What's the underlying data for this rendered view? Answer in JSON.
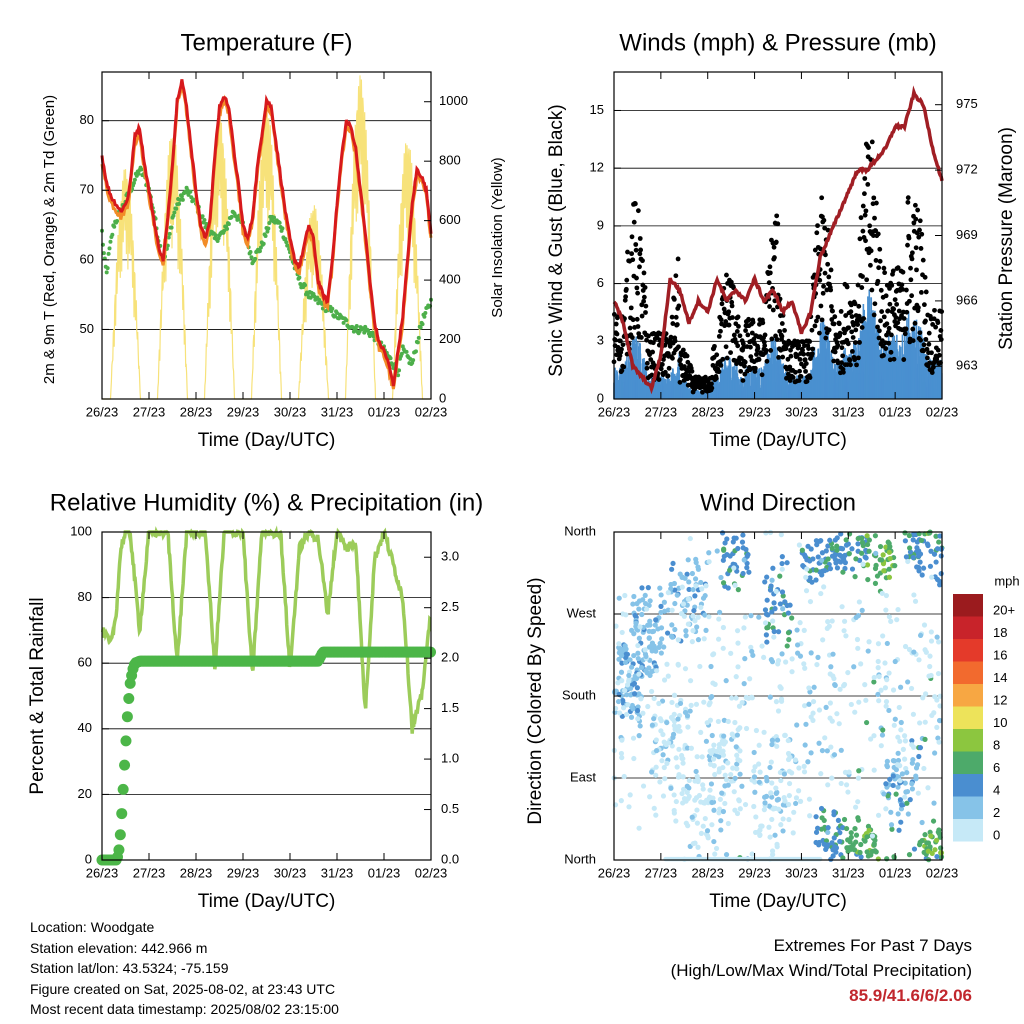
{
  "chart_data": [
    {
      "type": "line",
      "title": "Temperature (F)",
      "xlabel": "Time (Day/UTC)",
      "ylabel": "2m & 9m T (Red, Orange) & 2m Td (Green)",
      "y2label": "Solar Insolation (Yellow)",
      "x_ticks": [
        "26/23",
        "27/23",
        "28/23",
        "29/23",
        "30/23",
        "31/23",
        "01/23",
        "02/23"
      ],
      "ylim": [
        40,
        87
      ],
      "y_ticks": [
        50,
        60,
        70,
        80
      ],
      "y2lim": [
        0,
        1100
      ],
      "y2_ticks": [
        0,
        200,
        400,
        600,
        800,
        1000
      ],
      "grid": true,
      "series": [
        {
          "name": "2m T",
          "color": "#d7191c",
          "axis": "left",
          "x": [
            0,
            0.1,
            0.2,
            0.3,
            0.4,
            0.5,
            0.55,
            0.6,
            0.7,
            0.8,
            0.9,
            1.0,
            1.1,
            1.2,
            1.3,
            1.4,
            1.5,
            1.6,
            1.7,
            1.8,
            1.9,
            2.0,
            2.1,
            2.2,
            2.3,
            2.4,
            2.5,
            2.6,
            2.7,
            2.8,
            2.9,
            3.0,
            3.1,
            3.2,
            3.3,
            3.4,
            3.5,
            3.6,
            3.7,
            3.8,
            3.9,
            4.0,
            4.1,
            4.2,
            4.3,
            4.4,
            4.5,
            4.6,
            4.7,
            4.8,
            4.9,
            5.0,
            5.1,
            5.2,
            5.3,
            5.4,
            5.5,
            5.6,
            5.7,
            5.8,
            5.9,
            6.0,
            6.1,
            6.2,
            6.3,
            6.4,
            6.5,
            6.6,
            6.7,
            6.8,
            6.9,
            7.0
          ],
          "y": [
            75,
            71,
            69,
            68,
            67,
            68,
            69,
            71,
            78,
            79,
            74,
            70,
            66,
            62,
            60,
            66,
            74,
            83,
            85.9,
            82,
            76,
            70,
            65,
            63,
            66,
            75,
            82,
            83.5,
            82,
            76,
            71,
            65,
            63,
            66,
            73,
            78,
            83,
            82,
            77,
            72,
            67,
            63,
            60,
            59,
            62,
            65,
            63,
            57,
            55,
            54,
            60,
            68,
            75,
            80,
            79,
            76,
            70,
            64,
            57,
            51,
            48,
            47,
            45,
            42,
            47,
            52,
            60,
            68,
            73,
            72,
            70,
            64
          ]
        },
        {
          "name": "9m T",
          "color": "#f28c28",
          "axis": "left",
          "x": [
            0,
            0.3,
            0.6,
            0.9,
            1.2,
            1.5,
            1.8,
            2.1,
            2.4,
            2.7,
            3.0,
            3.3,
            3.6,
            3.9,
            4.2,
            4.5,
            4.8,
            5.1,
            5.4,
            5.7,
            6.0,
            6.3,
            6.6,
            6.9,
            7.0
          ],
          "y": [
            74,
            68,
            71,
            73,
            62,
            73,
            82,
            66,
            72,
            80,
            66,
            71,
            80,
            69,
            60,
            62,
            55,
            66,
            78,
            63,
            49,
            43,
            62,
            71,
            65
          ]
        },
        {
          "name": "2m Td",
          "color": "#4daf4a",
          "axis": "left",
          "x": [
            0,
            0.05,
            0.1,
            0.15,
            0.25,
            0.4,
            0.6,
            0.8,
            0.9,
            1.0,
            1.1,
            1.2,
            1.3,
            1.4,
            1.5,
            1.6,
            1.8,
            2.0,
            2.2,
            2.4,
            2.6,
            2.8,
            3.0,
            3.2,
            3.4,
            3.6,
            3.8,
            4.0,
            4.2,
            4.4,
            4.6,
            4.8,
            5.0,
            5.2,
            5.4,
            5.6,
            5.8,
            6.0,
            6.1,
            6.2,
            6.3,
            6.4,
            6.6,
            6.8,
            7.0
          ],
          "y": [
            64,
            60,
            58,
            61,
            65,
            67,
            70,
            73,
            72,
            70,
            67,
            63,
            60,
            62,
            66,
            68,
            70,
            68,
            65,
            63,
            64,
            67,
            65,
            60,
            62,
            66,
            65,
            61,
            57,
            55,
            54,
            53,
            52,
            51,
            50,
            50,
            49,
            47,
            46,
            45,
            44,
            47,
            45,
            51,
            54
          ]
        },
        {
          "name": "Solar Insolation",
          "color": "#f7e27a",
          "axis": "right",
          "peaks_x": [
            0.5,
            1.5,
            2.5,
            3.5,
            4.5,
            5.5,
            6.5
          ],
          "peaks_y": [
            780,
            910,
            960,
            1000,
            660,
            1090,
            880
          ]
        }
      ]
    },
    {
      "type": "scatter",
      "title": "Winds (mph) & Pressure (mb)",
      "xlabel": "Time (Day/UTC)",
      "ylabel": "Sonic Wind & Gust (Blue, Black)",
      "y2label": "Station Pressure (Maroon)",
      "x_ticks": [
        "26/23",
        "27/23",
        "28/23",
        "29/23",
        "30/23",
        "31/23",
        "01/23",
        "02/23"
      ],
      "ylim": [
        0,
        17
      ],
      "y_ticks": [
        0,
        3,
        6,
        9,
        12,
        15
      ],
      "y2lim": [
        961.5,
        976.5
      ],
      "y2_ticks": [
        963,
        966,
        969,
        972,
        975
      ],
      "grid": true,
      "series": [
        {
          "name": "Sonic Wind",
          "color": "#4a90d0",
          "mean_level": [
            2,
            1.5,
            0.6,
            1.4,
            2,
            1.5,
            2.5,
            3.5,
            4,
            2.5
          ]
        },
        {
          "name": "Gust",
          "color": "#000000",
          "mean_level": [
            6,
            4.5,
            1.5,
            4,
            5.5,
            4,
            6,
            8,
            9,
            6
          ]
        },
        {
          "name": "Station Pressure",
          "color": "#a01e24",
          "x": [
            0,
            0.2,
            0.4,
            0.6,
            0.8,
            1.0,
            1.2,
            1.4,
            1.6,
            1.8,
            2.0,
            2.2,
            2.4,
            2.6,
            2.8,
            3.0,
            3.2,
            3.4,
            3.6,
            3.8,
            4.0,
            4.2,
            4.4,
            4.6,
            4.8,
            5.0,
            5.2,
            5.4,
            5.6,
            5.8,
            6.0,
            6.2,
            6.4,
            6.6,
            6.8,
            7.0
          ],
          "y": [
            966,
            965,
            963,
            962.5,
            962,
            963.5,
            967,
            966.5,
            965,
            966,
            965.5,
            967,
            966,
            966.5,
            966,
            967,
            966,
            966.5,
            965.5,
            966,
            964.5,
            965.5,
            968,
            969,
            970,
            971,
            972,
            972,
            972.5,
            973,
            974,
            974,
            975.5,
            975,
            973,
            971.5
          ]
        }
      ]
    },
    {
      "type": "line",
      "title": "Relative Humidity (%) & Precipitation (in)",
      "xlabel": "Time (Day/UTC)",
      "ylabel": "Percent & Total Rainfall",
      "x_ticks": [
        "26/23",
        "27/23",
        "28/23",
        "29/23",
        "30/23",
        "31/23",
        "01/23",
        "02/23"
      ],
      "ylim": [
        0,
        100
      ],
      "y_ticks": [
        0,
        20,
        40,
        60,
        80,
        100
      ],
      "y2lim": [
        0,
        3.25
      ],
      "y2_ticks": [
        "0.0",
        "0.5",
        "1.0",
        "1.5",
        "2.0",
        "2.5",
        "3.0"
      ],
      "grid": true,
      "series": [
        {
          "name": "Relative Humidity",
          "color": "#9ccc5a",
          "axis": "left",
          "x": [
            0,
            0.1,
            0.2,
            0.3,
            0.4,
            0.5,
            0.6,
            0.8,
            1.0,
            1.2,
            1.4,
            1.6,
            1.8,
            2.0,
            2.2,
            2.4,
            2.6,
            2.8,
            3.0,
            3.2,
            3.4,
            3.6,
            3.8,
            4.0,
            4.2,
            4.4,
            4.6,
            4.8,
            5.0,
            5.2,
            5.4,
            5.6,
            5.8,
            6.0,
            6.2,
            6.4,
            6.6,
            6.8,
            7.0
          ],
          "y": [
            70,
            68,
            66,
            75,
            95,
            100,
            100,
            70,
            100,
            100,
            100,
            60,
            100,
            100,
            100,
            58,
            100,
            100,
            100,
            56,
            100,
            100,
            100,
            58,
            95,
            100,
            98,
            75,
            100,
            95,
            97,
            45,
            92,
            100,
            90,
            80,
            40,
            50,
            76
          ]
        },
        {
          "name": "Total Precipitation",
          "color": "#4cb648",
          "axis": "right",
          "x": [
            0,
            0.3,
            0.35,
            0.4,
            0.45,
            0.5,
            0.55,
            0.6,
            0.65,
            0.7,
            0.8,
            1.0,
            2.0,
            3.0,
            4.0,
            4.6,
            4.7,
            5.0,
            6.0,
            7.0
          ],
          "y": [
            0,
            0,
            0.05,
            0.3,
            0.7,
            1.1,
            1.5,
            1.75,
            1.88,
            1.95,
            1.97,
            1.97,
            1.97,
            1.97,
            1.97,
            1.97,
            2.06,
            2.06,
            2.06,
            2.06
          ]
        }
      ]
    },
    {
      "type": "scatter",
      "title": "Wind Direction",
      "xlabel": "Time (Day/UTC)",
      "ylabel": "Direction (Colored By Speed)",
      "x_ticks": [
        "26/23",
        "27/23",
        "28/23",
        "29/23",
        "30/23",
        "31/23",
        "01/23",
        "02/23"
      ],
      "y_ticks": [
        "North",
        "East",
        "South",
        "West",
        "North"
      ],
      "grid": true,
      "colorbar_title": "mph",
      "colorbar_labels": [
        "0",
        "2",
        "4",
        "6",
        "8",
        "10",
        "12",
        "14",
        "16",
        "18",
        "20+"
      ],
      "colorbar_colors": [
        "#c6e9f7",
        "#86c3e8",
        "#4a8ed0",
        "#4daa6a",
        "#8cc63f",
        "#ede35a",
        "#f7a743",
        "#f26a2e",
        "#e43a2a",
        "#c8232a",
        "#9b1b1e"
      ]
    }
  ],
  "station": {
    "location": "Location: Woodgate",
    "elevation": "Station elevation: 442.966 m",
    "latlon": "Station lat/lon: 43.5324; -75.159",
    "created": "Figure created on Sat, 2025-08-02, at 23:43 UTC",
    "recent": "Most recent data timestamp: 2025/08/02 23:15:00"
  },
  "extremes": {
    "heading": "Extremes For Past 7 Days",
    "subheading": "(High/Low/Max Wind/Total Precipitation)",
    "values": "85.9/41.6/6/2.06"
  }
}
